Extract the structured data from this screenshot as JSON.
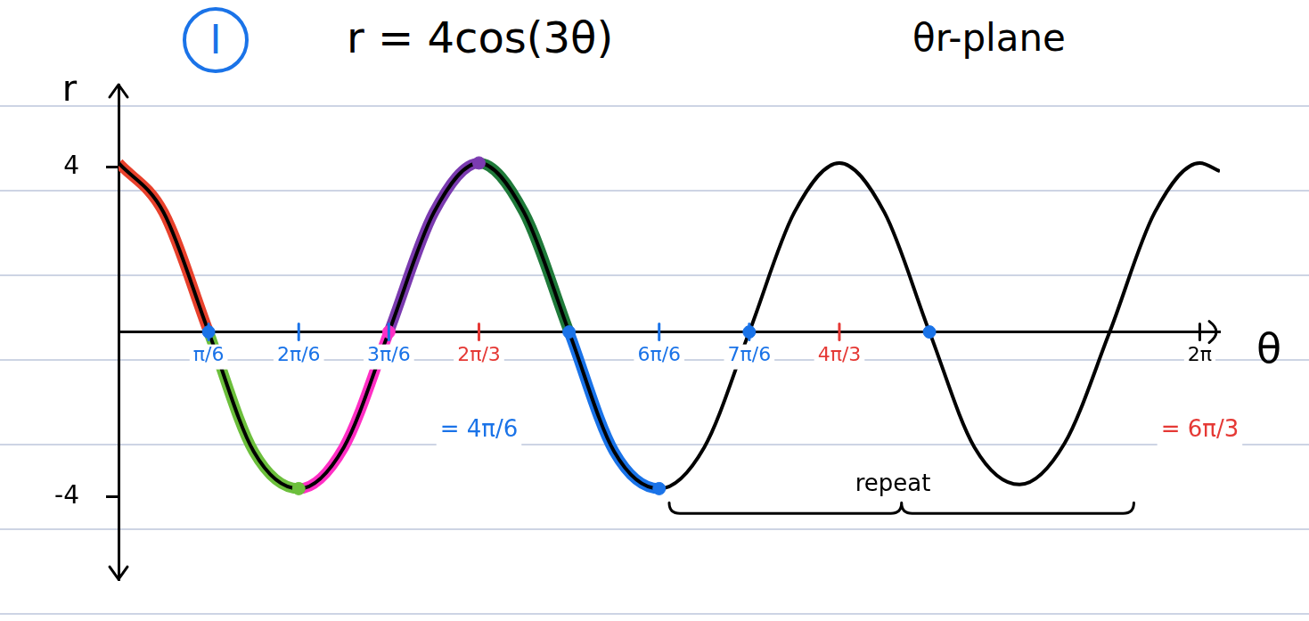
{
  "chart_data": {
    "type": "line",
    "label": "I",
    "title": "r = 4cos(3θ)",
    "subtitle": "θr-plane",
    "x_label": "θ",
    "y_label": "r",
    "x": [
      0,
      0.2618,
      0.5236,
      0.7854,
      1.0472,
      1.309,
      1.5708,
      1.8326,
      2.0944,
      2.3562,
      2.618,
      2.8798,
      3.1416,
      3.4034,
      3.6652,
      3.927,
      4.1888,
      4.4506,
      4.7124,
      4.9742,
      5.236,
      5.4978,
      5.7596,
      6.0214,
      6.2832,
      6.4
    ],
    "values": [
      4.1,
      2.9,
      0,
      -2.9,
      -3.8,
      -2.8,
      0,
      2.9,
      4.1,
      2.9,
      0,
      -2.9,
      -3.8,
      -2.8,
      0,
      2.9,
      4.1,
      2.9,
      0,
      -2.8,
      -3.7,
      -2.7,
      0,
      2.9,
      4.1,
      3.9
    ],
    "color": "#000000",
    "xlim": [
      0,
      6.4
    ],
    "ylim": [
      -6,
      6
    ],
    "yticks": [
      -4,
      4
    ],
    "xticks": [
      {
        "value": 0.5236,
        "label": "π/6",
        "color": "#1a73e8"
      },
      {
        "value": 1.0472,
        "label": "2π/6",
        "color": "#1a73e8"
      },
      {
        "value": 1.5708,
        "label": "3π/6",
        "color": "#1a73e8"
      },
      {
        "value": 2.0944,
        "label": "2π/3",
        "color": "#e53935"
      },
      {
        "value": 3.1416,
        "label": "6π/6",
        "color": "#1a73e8"
      },
      {
        "value": 3.6652,
        "label": "7π/6",
        "color": "#1a73e8"
      },
      {
        "value": 4.1888,
        "label": "4π/3",
        "color": "#e53935"
      },
      {
        "value": 6.2832,
        "label": "2π",
        "color": "#000000"
      }
    ],
    "grid": false,
    "highlights": [
      {
        "from": 0,
        "to": 0.5236,
        "color": "#e8412c"
      },
      {
        "from": 0.5236,
        "to": 1.0472,
        "color": "#6cbf3c"
      },
      {
        "from": 1.0472,
        "to": 1.5708,
        "color": "#ff2fc4"
      },
      {
        "from": 1.5708,
        "to": 2.0944,
        "color": "#7b3bb0"
      },
      {
        "from": 2.0944,
        "to": 2.618,
        "color": "#1f7a3a"
      },
      {
        "from": 2.618,
        "to": 3.1416,
        "color": "#1a73e8"
      }
    ],
    "points": [
      {
        "x": 0.5236,
        "y": 0,
        "color": "#1a73e8"
      },
      {
        "x": 1.0472,
        "y": -3.8,
        "color": "#6cbf3c"
      },
      {
        "x": 1.5708,
        "y": 0,
        "color": "#ff2fc4"
      },
      {
        "x": 2.0944,
        "y": 4.1,
        "color": "#7b3bb0"
      },
      {
        "x": 2.618,
        "y": 0,
        "color": "#1a73e8"
      },
      {
        "x": 3.1416,
        "y": -3.8,
        "color": "#1a73e8"
      },
      {
        "x": 3.6652,
        "y": 0,
        "color": "#1a73e8"
      },
      {
        "x": 4.7124,
        "y": 0,
        "color": "#1a73e8"
      }
    ],
    "annotations": [
      {
        "text": "= 4π/6",
        "x": 2.0944,
        "y": -2.4,
        "color": "#1a73e8"
      },
      {
        "text": "= 6π/3",
        "x": 6.2832,
        "y": -2.4,
        "color": "#e53935"
      },
      {
        "text": "repeat",
        "x": 4.5,
        "y": -3.7,
        "color": "#000000",
        "bracket": {
          "from": 3.2,
          "to": 5.9,
          "y": -4.4
        }
      }
    ]
  }
}
